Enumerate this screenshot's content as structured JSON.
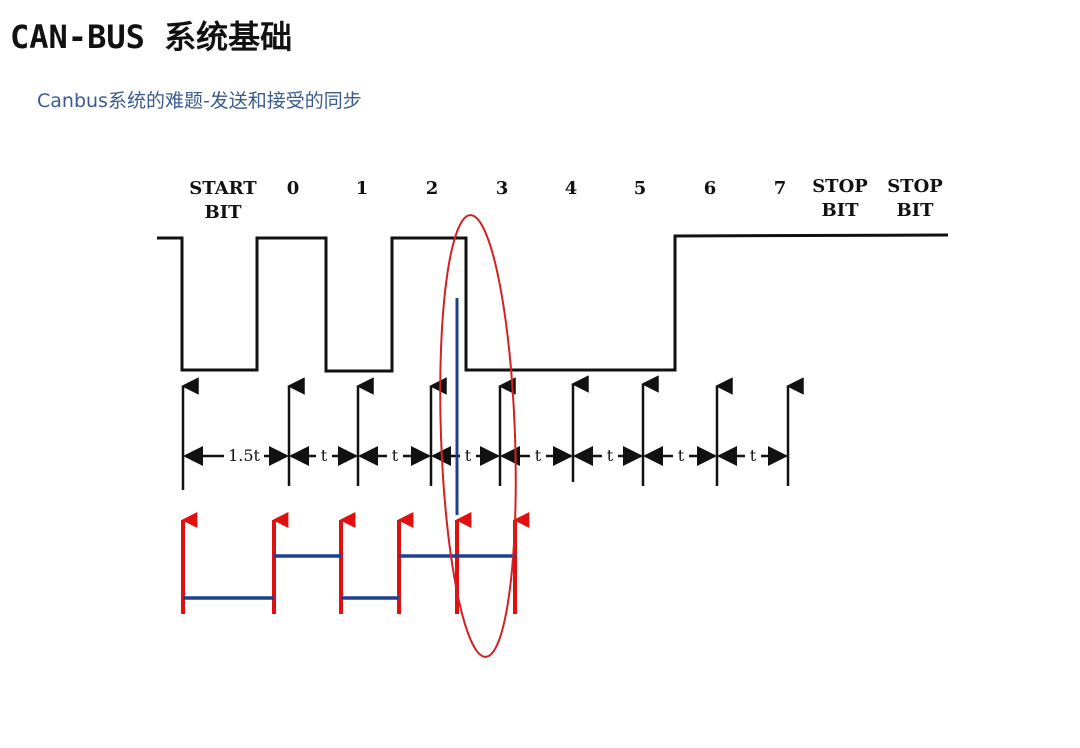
{
  "title": "CAN-BUS 系统基础",
  "subtitle": "Canbus系统的难题-发送和接受的同步",
  "diagram": {
    "bit_labels": [
      {
        "line1": "START",
        "line2": "BIT"
      },
      {
        "line1": "0"
      },
      {
        "line1": "1"
      },
      {
        "line1": "2"
      },
      {
        "line1": "3"
      },
      {
        "line1": "4"
      },
      {
        "line1": "5"
      },
      {
        "line1": "6"
      },
      {
        "line1": "7"
      },
      {
        "line1": "STOP",
        "line2": "BIT"
      },
      {
        "line1": "STOP",
        "line2": "BIT"
      }
    ],
    "interval_labels": [
      "1.5t",
      "t",
      "t",
      "t",
      "t",
      "t",
      "t",
      "t"
    ],
    "colors": {
      "signal": "#111111",
      "highlight_ellipse": "#d42020",
      "sync_line": "#1f3f8f",
      "receiver_arrows": "#e01010"
    }
  }
}
